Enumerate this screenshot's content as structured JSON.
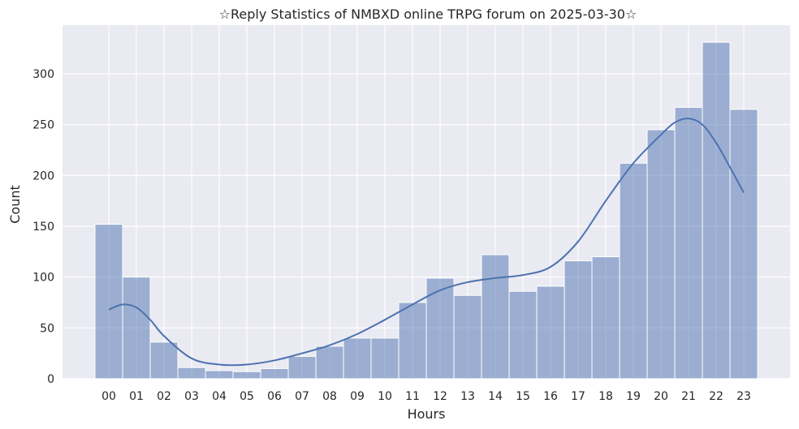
{
  "chart_data": {
    "type": "bar",
    "title": "☆Reply Statistics of NMBXD online TRPG forum on 2025-03-30☆",
    "xlabel": "Hours",
    "ylabel": "Count",
    "categories": [
      "00",
      "01",
      "02",
      "03",
      "04",
      "05",
      "06",
      "07",
      "08",
      "09",
      "10",
      "11",
      "12",
      "13",
      "14",
      "15",
      "16",
      "17",
      "18",
      "19",
      "20",
      "21",
      "22",
      "23"
    ],
    "values": [
      152,
      100,
      36,
      11,
      8,
      7,
      10,
      22,
      32,
      40,
      40,
      75,
      99,
      82,
      122,
      86,
      91,
      116,
      120,
      212,
      245,
      267,
      331,
      265
    ],
    "ylim": [
      0,
      345
    ],
    "yticks": [
      0,
      50,
      100,
      150,
      200,
      250,
      300
    ],
    "kde": {
      "x": [
        0,
        0.5,
        1,
        1.5,
        2,
        3,
        4,
        5,
        6,
        7,
        8,
        9,
        10,
        11,
        12,
        13,
        14,
        15,
        16,
        17,
        18,
        19,
        20,
        20.5,
        21,
        21.5,
        22,
        22.5,
        23
      ],
      "y": [
        68,
        73,
        70,
        58,
        42,
        20,
        14,
        14,
        18,
        25,
        33,
        44,
        58,
        73,
        87,
        95,
        99,
        102,
        110,
        135,
        175,
        212,
        240,
        252,
        256,
        250,
        232,
        208,
        183
      ]
    },
    "grid": true,
    "colors": {
      "background": "#eaeaf2",
      "bar_fill": "#4c72b0",
      "bar_opacity": 0.5,
      "line": "#4c72b0",
      "grid": "#ffffff",
      "text": "#262626"
    }
  }
}
